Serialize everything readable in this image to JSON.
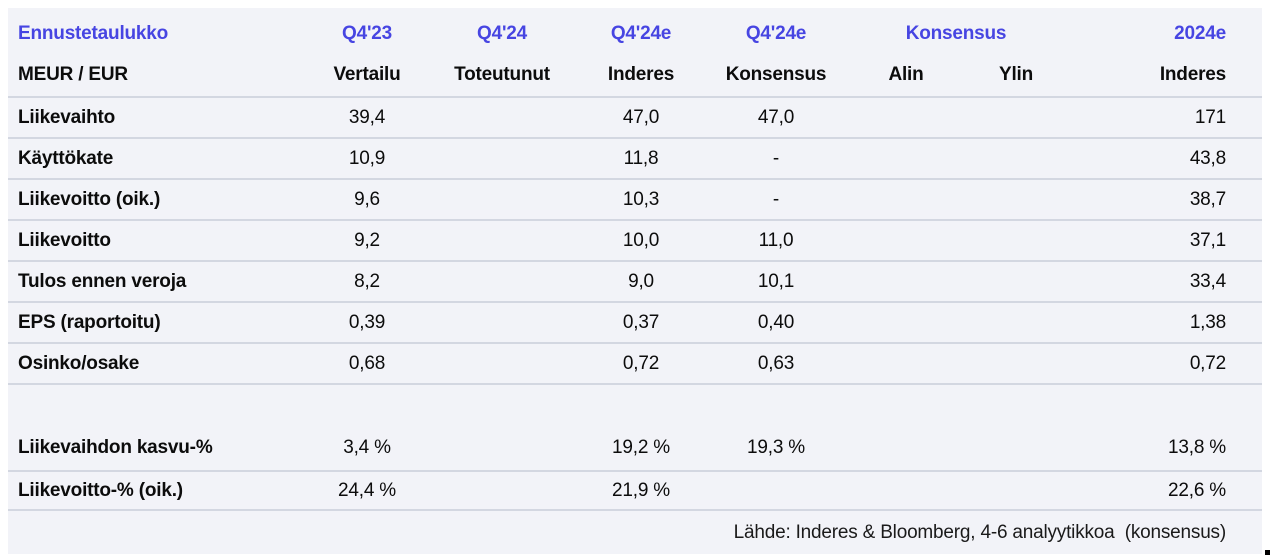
{
  "table": {
    "title": "Ennustetaulukko",
    "unit_label": "MEUR / EUR",
    "header_row1": [
      "Ennustetaulukko",
      "Q4'23",
      "Q4'24",
      "Q4'24e",
      "Q4'24e",
      "Konsensus",
      "2024e"
    ],
    "header_row2": [
      "MEUR / EUR",
      "Vertailu",
      "Toteutunut",
      "Inderes",
      "Konsensus",
      "Alin",
      "Ylin",
      "Inderes"
    ],
    "rows": [
      {
        "cells": [
          "Liikevaihto",
          "39,4",
          "",
          "47,0",
          "47,0",
          "",
          "",
          "171"
        ]
      },
      {
        "cells": [
          "Käyttökate",
          "10,9",
          "",
          "11,8",
          "-",
          "",
          "",
          "43,8"
        ]
      },
      {
        "cells": [
          "Liikevoitto (oik.)",
          "9,6",
          "",
          "10,3",
          "-",
          "",
          "",
          "38,7"
        ]
      },
      {
        "cells": [
          "Liikevoitto",
          "9,2",
          "",
          "10,0",
          "11,0",
          "",
          "",
          "37,1"
        ]
      },
      {
        "cells": [
          "Tulos ennen veroja",
          "8,2",
          "",
          "9,0",
          "10,1",
          "",
          "",
          "33,4"
        ]
      },
      {
        "cells": [
          "EPS (raportoitu)",
          "0,39",
          "",
          "0,37",
          "0,40",
          "",
          "",
          "1,38"
        ]
      },
      {
        "cells": [
          "Osinko/osake",
          "0,68",
          "",
          "0,72",
          "0,63",
          "",
          "",
          "0,72"
        ]
      },
      {
        "cells": [
          "Liikevaihdon kasvu-%",
          "3,4 %",
          "",
          "19,2 %",
          "19,3 %",
          "",
          "",
          "13,8 %"
        ]
      },
      {
        "cells": [
          "Liikevoitto-% (oik.)",
          "24,4 %",
          "",
          "21,9 %",
          "",
          "",
          "",
          "22,6 %"
        ]
      }
    ],
    "footer": "Lähde: Inderes & Bloomberg, 4-6 analyytikkoa  (konsensus)",
    "colors": {
      "header_accent": "#4745e2",
      "table_background": "#f2f3f8",
      "separator_line": "#d3d7e1",
      "text": "#0c0c0c"
    }
  }
}
